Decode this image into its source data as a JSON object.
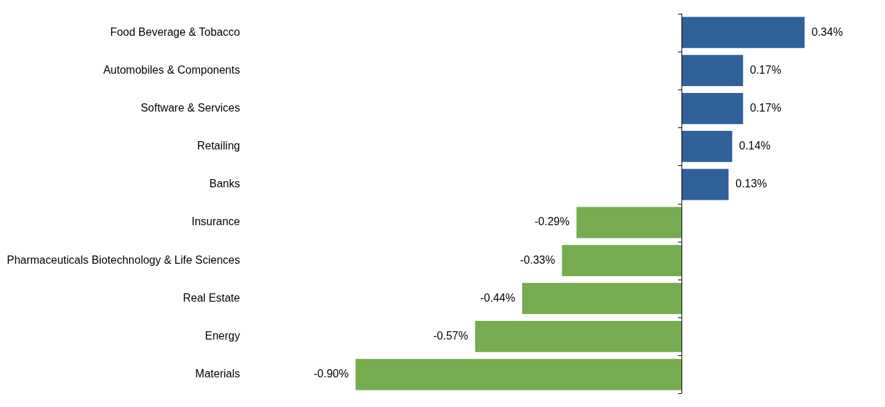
{
  "chart_data": {
    "type": "bar",
    "orientation": "horizontal",
    "categories": [
      "Food Beverage & Tobacco",
      "Automobiles & Components",
      "Software & Services",
      "Retailing",
      "Banks",
      "Insurance",
      "Pharmaceuticals Biotechnology & Life Sciences",
      "Real Estate",
      "Energy",
      "Materials"
    ],
    "values": [
      0.34,
      0.17,
      0.17,
      0.14,
      0.13,
      -0.29,
      -0.33,
      -0.44,
      -0.57,
      -0.9
    ],
    "colors": [
      "#31619a",
      "#31619a",
      "#31619a",
      "#31619a",
      "#31619a",
      "#75ac4f",
      "#75ac4f",
      "#75ac4f",
      "#75ac4f",
      "#75ac4f"
    ],
    "value_labels": [
      "0.34%",
      "0.17%",
      "0.17%",
      "0.14%",
      "0.13%",
      "-0.29%",
      "-0.33%",
      "-0.44%",
      "-0.57%",
      "-0.90%"
    ],
    "grid": false,
    "legend": false
  }
}
